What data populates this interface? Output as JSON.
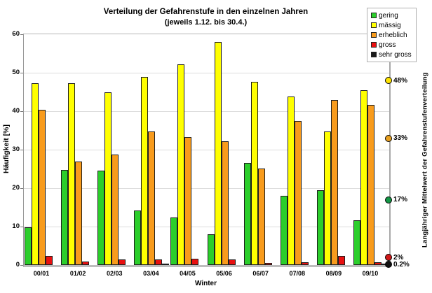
{
  "title": "Verteilung der Gefahrenstufe in den einzelnen Jahren",
  "subtitle": "(jeweils 1.12. bis 30.4.)",
  "y_axis": {
    "label": "Häufigkeit [%]",
    "ticks": [
      0,
      10,
      20,
      30,
      40,
      50,
      60
    ]
  },
  "x_axis": {
    "label": "Winter"
  },
  "right_axis_label": "Langjähriger Mittelwert der Gefahrenstufenverteilung",
  "chart_data": {
    "type": "bar",
    "title": "Verteilung der Gefahrenstufe in den einzelnen Jahren (jeweils 1.12. bis 30.4.)",
    "xlabel": "Winter",
    "ylabel": "Häufigkeit [%]",
    "ylim": [
      0,
      60
    ],
    "grid": true,
    "legend_position": "top-right",
    "categories": [
      "00/01",
      "01/02",
      "02/03",
      "03/04",
      "04/05",
      "05/06",
      "06/07",
      "07/08",
      "08/09",
      "09/10"
    ],
    "series": [
      {
        "name": "gering",
        "color": "#2BCE2B",
        "values": [
          9.8,
          24.8,
          24.6,
          14.2,
          12.3,
          8.0,
          26.5,
          18.0,
          19.5,
          11.7
        ]
      },
      {
        "name": "mässig",
        "color": "#FFFF00",
        "values": [
          47.3,
          47.2,
          44.9,
          49.0,
          52.2,
          58.0,
          47.6,
          43.8,
          34.8,
          45.5
        ]
      },
      {
        "name": "erheblich",
        "color": "#F89B1C",
        "values": [
          40.3,
          27.0,
          28.8,
          34.8,
          33.2,
          32.2,
          25.1,
          37.4,
          42.9,
          41.7
        ]
      },
      {
        "name": "gross",
        "color": "#E81010",
        "values": [
          2.4,
          0.9,
          1.4,
          1.5,
          1.7,
          1.5,
          0.5,
          0.8,
          2.3,
          0.8
        ]
      },
      {
        "name": "sehr gross",
        "color": "#1A1A1A",
        "values": [
          0,
          0,
          0,
          0.3,
          0,
          0,
          0,
          0,
          0,
          0.2
        ]
      }
    ],
    "mean_markers": [
      {
        "label": "48%",
        "value": 48,
        "color": "#FFE400"
      },
      {
        "label": "33%",
        "value": 33,
        "color": "#E8A020"
      },
      {
        "label": "17%",
        "value": 17,
        "color": "#149645"
      },
      {
        "label": "2%",
        "value": 2,
        "color": "#D01818"
      },
      {
        "label": "0.2%",
        "value": 0.2,
        "color": "#111111"
      }
    ]
  }
}
